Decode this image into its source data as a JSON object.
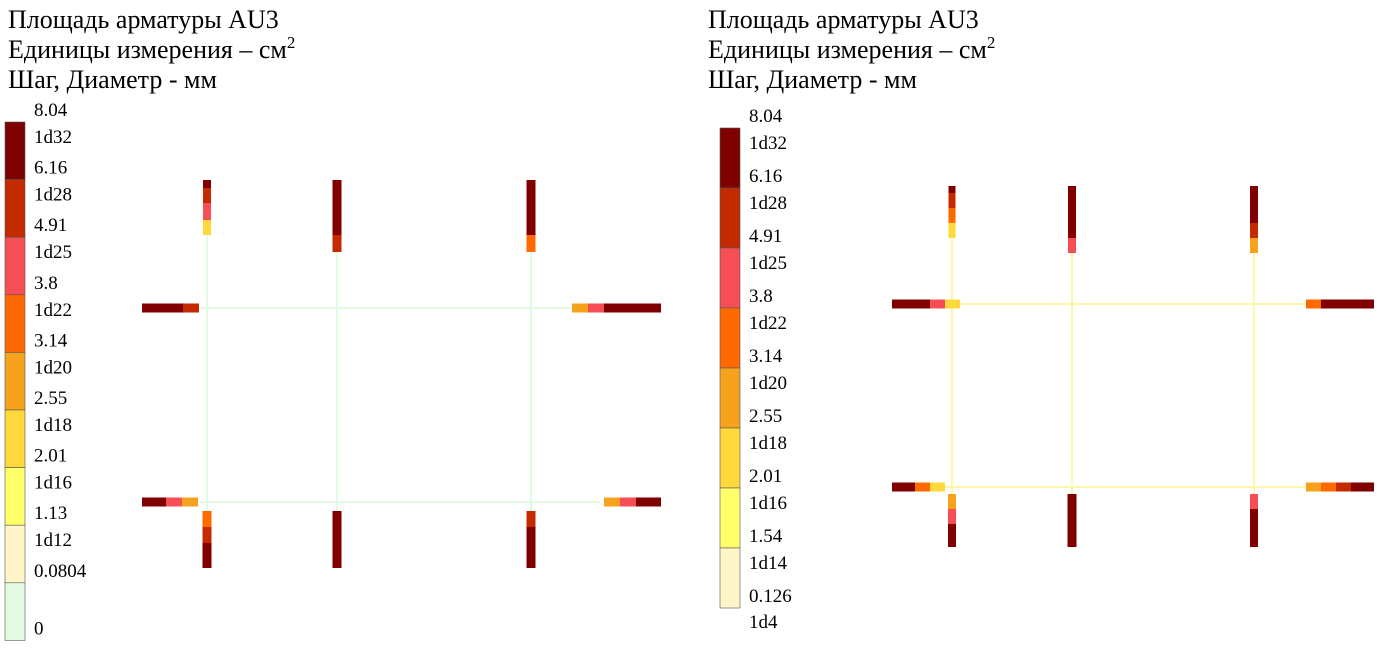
{
  "panels": [
    {
      "title": "Площадь арматуры AU3",
      "units": "Единицы измерения – см",
      "units_power": "2",
      "step": "Шаг, Диаметр - мм",
      "legend": {
        "values": [
          "8.04",
          "6.16",
          "4.91",
          "3.8",
          "3.14",
          "2.55",
          "2.01",
          "1.13",
          "0.0804",
          "0"
        ],
        "boxes": [
          {
            "label": "1d32",
            "color": "#800000"
          },
          {
            "label": "1d28",
            "color": "#c42a00"
          },
          {
            "label": "1d25",
            "color": "#f54f55"
          },
          {
            "label": "1d22",
            "color": "#ff6a00"
          },
          {
            "label": "1d20",
            "color": "#f7a21c"
          },
          {
            "label": "1d18",
            "color": "#ffd83c"
          },
          {
            "label": "1d16",
            "color": "#ffff6a"
          },
          {
            "label": "1d12",
            "color": "#fff5c8"
          },
          {
            "label": null,
            "color": "#e2fbe2"
          }
        ]
      }
    },
    {
      "title": "Площадь арматуры AU3",
      "units": "Единицы измерения – см",
      "units_power": "2",
      "step": "Шаг, Диаметр - мм",
      "legend": {
        "values": [
          "8.04",
          "6.16",
          "4.91",
          "3.8",
          "3.14",
          "2.55",
          "2.01",
          "1.54",
          "0.126"
        ],
        "boxes": [
          {
            "label": "1d32",
            "color": "#800000"
          },
          {
            "label": "1d28",
            "color": "#c42a00"
          },
          {
            "label": "1d25",
            "color": "#f54f55"
          },
          {
            "label": "1d22",
            "color": "#ff6a00"
          },
          {
            "label": "1d20",
            "color": "#f7a21c"
          },
          {
            "label": "1d18",
            "color": "#ffd83c"
          },
          {
            "label": "1d16",
            "color": "#ffff6a"
          },
          {
            "label": "1d14",
            "color": "#fff5c8"
          }
        ],
        "tail_label": "1d4"
      }
    }
  ]
}
